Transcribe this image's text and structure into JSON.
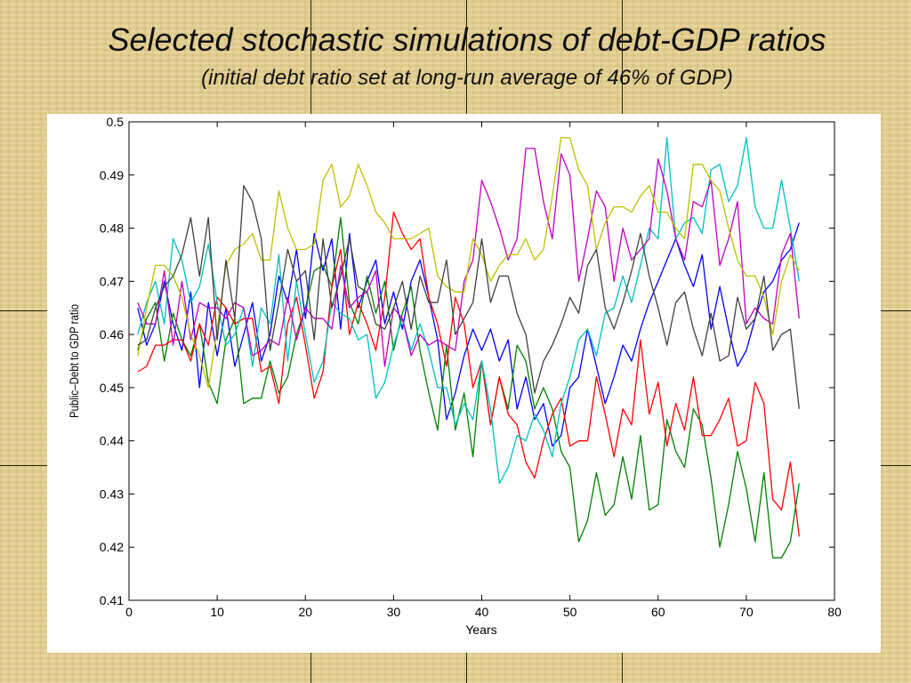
{
  "slide": {
    "title": "Selected stochastic simulations of debt-GDP ratios",
    "subtitle": "(initial debt ratio set at long-run average of 46% of GDP)"
  },
  "chart_data": {
    "type": "line",
    "title": "",
    "xlabel": "Years",
    "ylabel": "Public–Debt to GDP ratio",
    "xlim": [
      0,
      80
    ],
    "ylim": [
      0.41,
      0.5
    ],
    "xticks": [
      0,
      10,
      20,
      30,
      40,
      50,
      60,
      70,
      80
    ],
    "yticks": [
      0.41,
      0.42,
      0.43,
      0.44,
      0.45,
      0.46,
      0.47,
      0.48,
      0.49,
      0.5
    ],
    "ytick_labels": [
      "0.41",
      "0.42",
      "0.43",
      "0.44",
      "0.45",
      "0.46",
      "0.47",
      "0.48",
      "0.49",
      "0.5"
    ],
    "grid": false,
    "legend": "none",
    "series": [
      {
        "color": "#0000ff",
        "values": [
          0.465,
          0.458,
          0.462,
          0.47,
          0.462,
          0.457,
          0.468,
          0.45,
          0.466,
          0.456,
          0.465,
          0.454,
          0.46,
          0.466,
          0.455,
          0.46,
          0.471,
          0.466,
          0.476,
          0.463,
          0.479,
          0.472,
          0.478,
          0.461,
          0.479,
          0.465,
          0.47,
          0.474,
          0.462,
          0.468,
          0.461,
          0.47,
          0.474,
          0.467,
          0.459,
          0.444,
          0.449,
          0.456,
          0.461,
          0.457,
          0.461,
          0.455,
          0.459,
          0.446,
          0.452,
          0.444,
          0.447,
          0.439,
          0.441,
          0.45,
          0.452,
          0.461,
          0.454,
          0.447,
          0.452,
          0.458,
          0.455,
          0.461,
          0.466,
          0.47,
          0.474,
          0.478,
          0.473,
          0.469,
          0.475,
          0.461,
          0.469,
          0.461,
          0.454,
          0.457,
          0.463,
          0.468,
          0.47,
          0.474,
          0.476,
          0.481
        ]
      },
      {
        "color": "#008000",
        "values": [
          0.457,
          0.463,
          0.466,
          0.455,
          0.464,
          0.459,
          0.456,
          0.462,
          0.451,
          0.447,
          0.459,
          0.463,
          0.447,
          0.448,
          0.448,
          0.455,
          0.449,
          0.452,
          0.46,
          0.465,
          0.472,
          0.473,
          0.469,
          0.482,
          0.466,
          0.462,
          0.471,
          0.464,
          0.47,
          0.457,
          0.464,
          0.469,
          0.457,
          0.449,
          0.442,
          0.458,
          0.442,
          0.449,
          0.437,
          0.455,
          0.443,
          0.452,
          0.446,
          0.458,
          0.455,
          0.446,
          0.45,
          0.446,
          0.438,
          0.435,
          0.421,
          0.425,
          0.434,
          0.426,
          0.428,
          0.437,
          0.429,
          0.441,
          0.427,
          0.428,
          0.444,
          0.438,
          0.435,
          0.446,
          0.443,
          0.433,
          0.42,
          0.428,
          0.438,
          0.431,
          0.421,
          0.434,
          0.418,
          0.418,
          0.421,
          0.432
        ]
      },
      {
        "color": "#ff0000",
        "values": [
          0.453,
          0.454,
          0.458,
          0.458,
          0.459,
          0.459,
          0.455,
          0.462,
          0.458,
          0.467,
          0.465,
          0.462,
          0.463,
          0.463,
          0.453,
          0.454,
          0.447,
          0.462,
          0.467,
          0.458,
          0.448,
          0.453,
          0.469,
          0.476,
          0.46,
          0.466,
          0.462,
          0.457,
          0.467,
          0.483,
          0.479,
          0.476,
          0.478,
          0.467,
          0.462,
          0.454,
          0.467,
          0.462,
          0.45,
          0.455,
          0.443,
          0.452,
          0.445,
          0.443,
          0.436,
          0.433,
          0.44,
          0.445,
          0.448,
          0.439,
          0.44,
          0.44,
          0.452,
          0.445,
          0.437,
          0.446,
          0.443,
          0.459,
          0.445,
          0.451,
          0.439,
          0.447,
          0.442,
          0.452,
          0.441,
          0.441,
          0.444,
          0.448,
          0.439,
          0.44,
          0.451,
          0.447,
          0.429,
          0.427,
          0.436,
          0.422
        ]
      },
      {
        "color": "#00bfbf",
        "values": [
          0.46,
          0.466,
          0.47,
          0.462,
          0.478,
          0.474,
          0.466,
          0.469,
          0.477,
          0.466,
          0.458,
          0.46,
          0.465,
          0.454,
          0.465,
          0.462,
          0.475,
          0.455,
          0.47,
          0.46,
          0.451,
          0.455,
          0.466,
          0.464,
          0.463,
          0.459,
          0.46,
          0.448,
          0.451,
          0.458,
          0.463,
          0.457,
          0.462,
          0.457,
          0.45,
          0.45,
          0.443,
          0.447,
          0.444,
          0.455,
          0.446,
          0.432,
          0.435,
          0.441,
          0.44,
          0.445,
          0.442,
          0.437,
          0.447,
          0.452,
          0.459,
          0.461,
          0.456,
          0.464,
          0.465,
          0.471,
          0.466,
          0.473,
          0.48,
          0.478,
          0.497,
          0.478,
          0.481,
          0.482,
          0.479,
          0.491,
          0.492,
          0.485,
          0.488,
          0.497,
          0.484,
          0.48,
          0.48,
          0.489,
          0.48,
          0.47
        ]
      },
      {
        "color": "#bf00bf",
        "values": [
          0.466,
          0.462,
          0.462,
          0.472,
          0.458,
          0.47,
          0.459,
          0.466,
          0.465,
          0.465,
          0.463,
          0.466,
          0.465,
          0.456,
          0.457,
          0.459,
          0.458,
          0.467,
          0.459,
          0.465,
          0.463,
          0.463,
          0.461,
          0.473,
          0.465,
          0.467,
          0.468,
          0.472,
          0.454,
          0.465,
          0.463,
          0.456,
          0.46,
          0.458,
          0.459,
          0.458,
          0.457,
          0.47,
          0.474,
          0.489,
          0.485,
          0.48,
          0.474,
          0.478,
          0.495,
          0.495,
          0.485,
          0.478,
          0.494,
          0.49,
          0.47,
          0.478,
          0.487,
          0.484,
          0.47,
          0.48,
          0.474,
          0.476,
          0.478,
          0.493,
          0.487,
          0.478,
          0.474,
          0.485,
          0.484,
          0.489,
          0.473,
          0.478,
          0.485,
          0.462,
          0.465,
          0.463,
          0.462,
          0.475,
          0.479,
          0.463
        ]
      },
      {
        "color": "#bfbf00",
        "values": [
          0.456,
          0.465,
          0.473,
          0.473,
          0.471,
          0.467,
          0.46,
          0.456,
          0.45,
          0.461,
          0.473,
          0.476,
          0.477,
          0.479,
          0.474,
          0.474,
          0.487,
          0.48,
          0.476,
          0.476,
          0.477,
          0.489,
          0.492,
          0.484,
          0.486,
          0.492,
          0.488,
          0.483,
          0.481,
          0.478,
          0.478,
          0.478,
          0.479,
          0.48,
          0.471,
          0.469,
          0.468,
          0.468,
          0.478,
          0.475,
          0.47,
          0.473,
          0.475,
          0.475,
          0.478,
          0.474,
          0.476,
          0.486,
          0.497,
          0.497,
          0.491,
          0.488,
          0.476,
          0.481,
          0.484,
          0.484,
          0.483,
          0.486,
          0.488,
          0.483,
          0.483,
          0.48,
          0.478,
          0.492,
          0.492,
          0.489,
          0.487,
          0.48,
          0.474,
          0.471,
          0.471,
          0.467,
          0.46,
          0.47,
          0.475,
          0.472
        ]
      },
      {
        "color": "#404040",
        "values": [
          0.458,
          0.459,
          0.465,
          0.469,
          0.471,
          0.475,
          0.482,
          0.471,
          0.482,
          0.459,
          0.474,
          0.463,
          0.488,
          0.485,
          0.478,
          0.457,
          0.466,
          0.476,
          0.47,
          0.472,
          0.459,
          0.478,
          0.465,
          0.471,
          0.478,
          0.469,
          0.468,
          0.462,
          0.461,
          0.465,
          0.47,
          0.461,
          0.471,
          0.466,
          0.466,
          0.474,
          0.46,
          0.463,
          0.466,
          0.478,
          0.466,
          0.471,
          0.471,
          0.464,
          0.46,
          0.449,
          0.455,
          0.458,
          0.462,
          0.467,
          0.464,
          0.473,
          0.476,
          0.465,
          0.461,
          0.466,
          0.472,
          0.479,
          0.471,
          0.465,
          0.458,
          0.466,
          0.468,
          0.461,
          0.456,
          0.464,
          0.455,
          0.456,
          0.467,
          0.461,
          0.463,
          0.471,
          0.457,
          0.46,
          0.461,
          0.446
        ]
      }
    ]
  }
}
